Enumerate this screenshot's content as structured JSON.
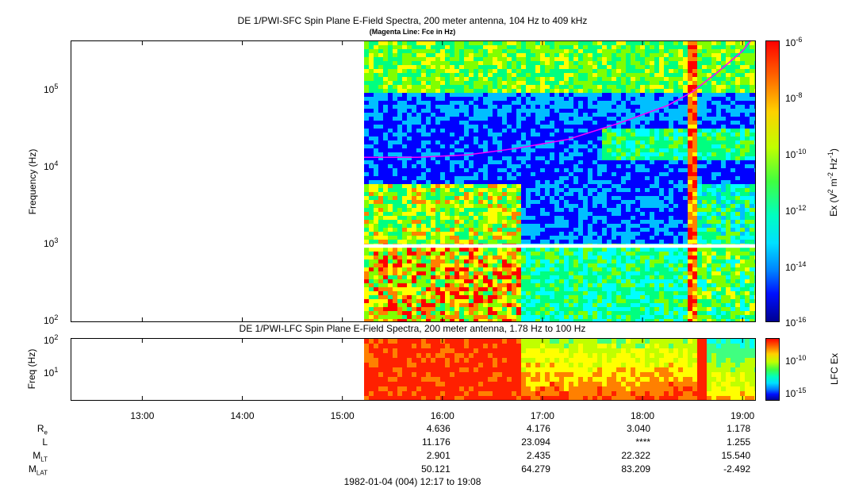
{
  "panels": {
    "sfc": {
      "title": "DE 1/PWI-SFC  Spin Plane E-Field Spectra, 200 meter antenna, 104 Hz to 409 kHz",
      "subtitle": "(Magenta Line: Fce in Hz)",
      "ylabel": "Frequency (Hz)",
      "yticks": [
        "10^5",
        "10^4",
        "10^3",
        "10^2"
      ],
      "colorbar_label": "Ex (V^2 m^-2 Hz^-1)",
      "colorbar_ticks": [
        "10^-6",
        "10^-8",
        "10^-10",
        "10^-12",
        "10^-14",
        "10^-16"
      ]
    },
    "lfc": {
      "title": "DE 1/PWI-LFC  Spin Plane E-Field Spectra, 200 meter antenna, 1.78 Hz to 100 Hz",
      "ylabel": "Freq (Hz)",
      "yticks": [
        "10^2",
        "10^1"
      ],
      "colorbar_label": "LFC Ex",
      "colorbar_ticks": [
        "10^-10",
        "10^-15"
      ]
    }
  },
  "time_axis": {
    "ticks": [
      "13:00",
      "14:00",
      "15:00",
      "16:00",
      "17:00",
      "18:00",
      "19:00"
    ]
  },
  "ephemeris": {
    "labels": [
      "Re",
      "L",
      "MLT",
      "MLAT"
    ],
    "label_parts": [
      [
        "R",
        "e"
      ],
      [
        "L",
        ""
      ],
      [
        "M",
        "LT"
      ],
      [
        "M",
        "LAT"
      ]
    ],
    "columns": [
      {
        "time": "16:00",
        "values": [
          "4.636",
          "11.176",
          "2.901",
          "50.121"
        ]
      },
      {
        "time": "17:00",
        "values": [
          "4.176",
          "23.094",
          "2.435",
          "64.279"
        ]
      },
      {
        "time": "18:00",
        "values": [
          "3.040",
          "****",
          "22.322",
          "83.209"
        ]
      },
      {
        "time": "19:00",
        "values": [
          "1.178",
          "1.255",
          "15.540",
          "-2.492"
        ]
      }
    ]
  },
  "date_range": "1982-01-04 (004) 12:17 to 19:08",
  "chart_data": [
    {
      "type": "heatmap",
      "title": "DE 1/PWI-SFC  Spin Plane E-Field Spectra, 200 meter antenna, 104 Hz to 409 kHz",
      "xlabel": "",
      "ylabel": "Frequency (Hz)",
      "x_range": [
        "12:17",
        "19:08"
      ],
      "data_start": "15:13",
      "y_range": [
        100,
        409000
      ],
      "y_scale": "log",
      "z_label": "Ex (V^2 m^-2 Hz^-1)",
      "z_range": [
        1e-16,
        1e-06
      ],
      "z_scale": "log",
      "gap_band_hz": [
        900,
        1000
      ],
      "overlay": {
        "name": "Fce in Hz",
        "color": "#ff00ff",
        "points": [
          [
            "15:13",
            13000
          ],
          [
            "15:45",
            13000
          ],
          [
            "16:15",
            14000
          ],
          [
            "16:45",
            17000
          ],
          [
            "17:15",
            22000
          ],
          [
            "17:45",
            35000
          ],
          [
            "18:15",
            60000
          ],
          [
            "18:30",
            90000
          ],
          [
            "18:45",
            160000
          ],
          [
            "19:00",
            300000
          ],
          [
            "19:05",
            409000
          ]
        ]
      },
      "colormap": [
        "#00008b",
        "#0000ff",
        "#00bfff",
        "#00ffff",
        "#00ff80",
        "#80ff00",
        "#ffff00",
        "#ff8000",
        "#ff0000"
      ]
    },
    {
      "type": "heatmap",
      "title": "DE 1/PWI-LFC  Spin Plane E-Field Spectra, 200 meter antenna, 1.78 Hz to 100 Hz",
      "xlabel": "",
      "ylabel": "Freq (Hz)",
      "x_range": [
        "12:17",
        "19:08"
      ],
      "data_start": "15:13",
      "y_range": [
        1.78,
        100
      ],
      "y_scale": "log",
      "z_label": "LFC Ex",
      "z_scale": "log"
    }
  ]
}
